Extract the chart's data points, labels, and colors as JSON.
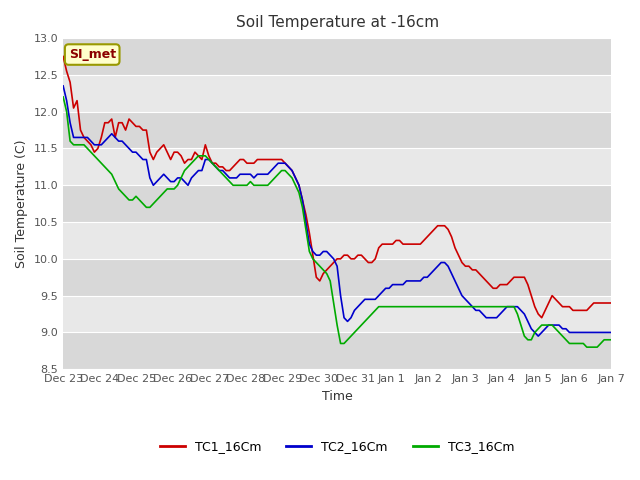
{
  "title": "Soil Temperature at -16cm",
  "xlabel": "Time",
  "ylabel": "Soil Temperature (C)",
  "ylim": [
    8.5,
    13.0
  ],
  "yticks": [
    8.5,
    9.0,
    9.5,
    10.0,
    10.5,
    11.0,
    11.5,
    12.0,
    12.5,
    13.0
  ],
  "x_labels": [
    "Dec 23",
    "Dec 24",
    "Dec 25",
    "Dec 26",
    "Dec 27",
    "Dec 28",
    "Dec 29",
    "Dec 30",
    "Dec 31",
    "Jan 1",
    "Jan 2",
    "Jan 3",
    "Jan 4",
    "Jan 5",
    "Jan 6",
    "Jan 7"
  ],
  "background_color": "#ffffff",
  "plot_bg_color": "#e8e8e8",
  "grid_color": "#ffffff",
  "annotation_text": "SI_met",
  "annotation_bg": "#ffffcc",
  "annotation_text_color": "#8b0000",
  "line_colors": {
    "TC1_16Cm": "#cc0000",
    "TC2_16Cm": "#0000cc",
    "TC3_16Cm": "#00aa00"
  },
  "legend_labels": [
    "TC1_16Cm",
    "TC2_16Cm",
    "TC3_16Cm"
  ],
  "TC1_16Cm": [
    12.75,
    12.55,
    12.4,
    12.05,
    12.15,
    11.75,
    11.65,
    11.6,
    11.55,
    11.45,
    11.5,
    11.65,
    11.85,
    11.85,
    11.9,
    11.65,
    11.85,
    11.85,
    11.75,
    11.9,
    11.85,
    11.8,
    11.8,
    11.75,
    11.75,
    11.45,
    11.35,
    11.45,
    11.5,
    11.55,
    11.45,
    11.35,
    11.45,
    11.45,
    11.4,
    11.3,
    11.35,
    11.35,
    11.45,
    11.4,
    11.35,
    11.55,
    11.4,
    11.3,
    11.3,
    11.25,
    11.25,
    11.2,
    11.2,
    11.25,
    11.3,
    11.35,
    11.35,
    11.3,
    11.3,
    11.3,
    11.35,
    11.35,
    11.35,
    11.35,
    11.35,
    11.35,
    11.35,
    11.35,
    11.3,
    11.25,
    11.2,
    11.1,
    11.0,
    10.8,
    10.6,
    10.35,
    10.05,
    9.75,
    9.7,
    9.8,
    9.85,
    9.9,
    9.95,
    10.0,
    10.0,
    10.05,
    10.05,
    10.0,
    10.0,
    10.05,
    10.05,
    10.0,
    9.95,
    9.95,
    10.0,
    10.15,
    10.2,
    10.2,
    10.2,
    10.2,
    10.25,
    10.25,
    10.2,
    10.2,
    10.2,
    10.2,
    10.2,
    10.2,
    10.25,
    10.3,
    10.35,
    10.4,
    10.45,
    10.45,
    10.45,
    10.4,
    10.3,
    10.15,
    10.05,
    9.95,
    9.9,
    9.9,
    9.85,
    9.85,
    9.8,
    9.75,
    9.7,
    9.65,
    9.6,
    9.6,
    9.65,
    9.65,
    9.65,
    9.7,
    9.75,
    9.75,
    9.75,
    9.75,
    9.65,
    9.5,
    9.35,
    9.25,
    9.2,
    9.3,
    9.4,
    9.5,
    9.45,
    9.4,
    9.35,
    9.35,
    9.35,
    9.3,
    9.3,
    9.3,
    9.3,
    9.3,
    9.35,
    9.4,
    9.4,
    9.4,
    9.4,
    9.4,
    9.4
  ],
  "TC2_16Cm": [
    12.35,
    12.15,
    11.85,
    11.65,
    11.65,
    11.65,
    11.65,
    11.65,
    11.6,
    11.55,
    11.55,
    11.55,
    11.6,
    11.65,
    11.7,
    11.65,
    11.6,
    11.6,
    11.55,
    11.5,
    11.45,
    11.45,
    11.4,
    11.35,
    11.35,
    11.1,
    11.0,
    11.05,
    11.1,
    11.15,
    11.1,
    11.05,
    11.05,
    11.1,
    11.1,
    11.05,
    11.0,
    11.1,
    11.15,
    11.2,
    11.2,
    11.35,
    11.35,
    11.3,
    11.25,
    11.2,
    11.2,
    11.15,
    11.1,
    11.1,
    11.1,
    11.15,
    11.15,
    11.15,
    11.15,
    11.1,
    11.15,
    11.15,
    11.15,
    11.15,
    11.2,
    11.25,
    11.3,
    11.3,
    11.3,
    11.25,
    11.2,
    11.1,
    11.0,
    10.8,
    10.5,
    10.2,
    10.1,
    10.05,
    10.05,
    10.1,
    10.1,
    10.05,
    10.0,
    9.9,
    9.5,
    9.2,
    9.15,
    9.2,
    9.3,
    9.35,
    9.4,
    9.45,
    9.45,
    9.45,
    9.45,
    9.5,
    9.55,
    9.6,
    9.6,
    9.65,
    9.65,
    9.65,
    9.65,
    9.7,
    9.7,
    9.7,
    9.7,
    9.7,
    9.75,
    9.75,
    9.8,
    9.85,
    9.9,
    9.95,
    9.95,
    9.9,
    9.8,
    9.7,
    9.6,
    9.5,
    9.45,
    9.4,
    9.35,
    9.3,
    9.3,
    9.25,
    9.2,
    9.2,
    9.2,
    9.2,
    9.25,
    9.3,
    9.35,
    9.35,
    9.35,
    9.35,
    9.3,
    9.25,
    9.15,
    9.05,
    9.0,
    8.95,
    9.0,
    9.05,
    9.1,
    9.1,
    9.1,
    9.1,
    9.05,
    9.05,
    9.0,
    9.0,
    9.0,
    9.0,
    9.0,
    9.0,
    9.0,
    9.0,
    9.0,
    9.0,
    9.0,
    9.0,
    9.0
  ],
  "TC3_16Cm": [
    12.2,
    12.0,
    11.6,
    11.55,
    11.55,
    11.55,
    11.55,
    11.5,
    11.45,
    11.4,
    11.35,
    11.3,
    11.25,
    11.2,
    11.15,
    11.05,
    10.95,
    10.9,
    10.85,
    10.8,
    10.8,
    10.85,
    10.8,
    10.75,
    10.7,
    10.7,
    10.75,
    10.8,
    10.85,
    10.9,
    10.95,
    10.95,
    10.95,
    11.0,
    11.1,
    11.2,
    11.25,
    11.3,
    11.35,
    11.4,
    11.4,
    11.4,
    11.35,
    11.3,
    11.25,
    11.2,
    11.15,
    11.1,
    11.05,
    11.0,
    11.0,
    11.0,
    11.0,
    11.0,
    11.05,
    11.0,
    11.0,
    11.0,
    11.0,
    11.0,
    11.05,
    11.1,
    11.15,
    11.2,
    11.2,
    11.15,
    11.1,
    11.0,
    10.9,
    10.7,
    10.4,
    10.1,
    10.0,
    9.95,
    9.9,
    9.85,
    9.8,
    9.7,
    9.4,
    9.1,
    8.85,
    8.85,
    8.9,
    8.95,
    9.0,
    9.05,
    9.1,
    9.15,
    9.2,
    9.25,
    9.3,
    9.35,
    9.35,
    9.35,
    9.35,
    9.35,
    9.35,
    9.35,
    9.35,
    9.35,
    9.35,
    9.35,
    9.35,
    9.35,
    9.35,
    9.35,
    9.35,
    9.35,
    9.35,
    9.35,
    9.35,
    9.35,
    9.35,
    9.35,
    9.35,
    9.35,
    9.35,
    9.35,
    9.35,
    9.35,
    9.35,
    9.35,
    9.35,
    9.35,
    9.35,
    9.35,
    9.35,
    9.35,
    9.35,
    9.35,
    9.35,
    9.25,
    9.1,
    8.95,
    8.9,
    8.9,
    9.0,
    9.05,
    9.1,
    9.1,
    9.1,
    9.1,
    9.05,
    9.0,
    8.95,
    8.9,
    8.85,
    8.85,
    8.85,
    8.85,
    8.85,
    8.8,
    8.8,
    8.8,
    8.8,
    8.85,
    8.9,
    8.9,
    8.9
  ]
}
